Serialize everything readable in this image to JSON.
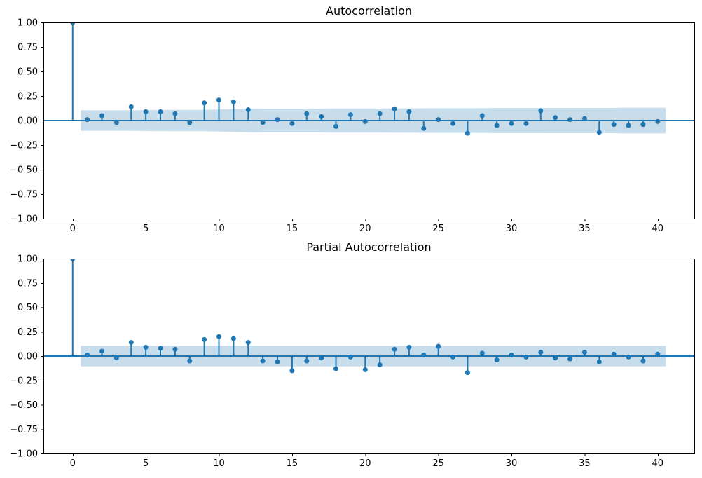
{
  "figure": {
    "background": "#ffffff"
  },
  "style": {
    "accent": "#1f77b4",
    "band_fill": "rgba(31,119,180,0.25)",
    "axis_color": "#000000",
    "text_color": "#000000"
  },
  "chart_data": [
    {
      "type": "stem",
      "title": "Autocorrelation",
      "x": [
        0,
        1,
        2,
        3,
        4,
        5,
        6,
        7,
        8,
        9,
        10,
        11,
        12,
        13,
        14,
        15,
        16,
        17,
        18,
        19,
        20,
        21,
        22,
        23,
        24,
        25,
        26,
        27,
        28,
        29,
        30,
        31,
        32,
        33,
        34,
        35,
        36,
        37,
        38,
        39,
        40
      ],
      "values": [
        1.0,
        0.01,
        0.05,
        -0.02,
        0.14,
        0.09,
        0.09,
        0.07,
        -0.02,
        0.18,
        0.21,
        0.19,
        0.11,
        -0.02,
        0.01,
        -0.03,
        0.07,
        0.04,
        -0.06,
        0.06,
        -0.01,
        0.07,
        0.12,
        0.09,
        -0.08,
        0.01,
        -0.03,
        -0.13,
        0.05,
        -0.05,
        -0.03,
        -0.03,
        0.1,
        0.03,
        0.01,
        0.02,
        -0.12,
        -0.04,
        -0.05,
        -0.04,
        -0.01
      ],
      "xlim": [
        -2,
        42.5
      ],
      "ylim": [
        -1,
        1
      ],
      "xticks": [
        0,
        5,
        10,
        15,
        20,
        25,
        30,
        35,
        40
      ],
      "xtick_labels": [
        "0",
        "5",
        "10",
        "15",
        "20",
        "25",
        "30",
        "35",
        "40"
      ],
      "yticks": [
        1,
        0.75,
        0.5,
        0.25,
        0,
        -0.25,
        -0.5,
        -0.75,
        -1
      ],
      "ytick_labels": [
        "1.00",
        "0.75",
        "0.50",
        "0.25",
        "0.00",
        "−0.25",
        "−0.50",
        "−0.75",
        "−1.00"
      ],
      "conf_band": {
        "method": "bartlett",
        "n_obs": 350,
        "x_start": 0.55,
        "x_end": 40.55
      },
      "grid": false,
      "legend": null
    },
    {
      "type": "stem",
      "title": "Partial Autocorrelation",
      "x": [
        0,
        1,
        2,
        3,
        4,
        5,
        6,
        7,
        8,
        9,
        10,
        11,
        12,
        13,
        14,
        15,
        16,
        17,
        18,
        19,
        20,
        21,
        22,
        23,
        24,
        25,
        26,
        27,
        28,
        29,
        30,
        31,
        32,
        33,
        34,
        35,
        36,
        37,
        38,
        39,
        40
      ],
      "values": [
        1.0,
        0.01,
        0.05,
        -0.02,
        0.14,
        0.09,
        0.08,
        0.07,
        -0.05,
        0.17,
        0.2,
        0.18,
        0.14,
        -0.05,
        -0.06,
        -0.15,
        -0.05,
        -0.02,
        -0.13,
        -0.01,
        -0.14,
        -0.09,
        0.07,
        0.09,
        0.01,
        0.1,
        -0.01,
        -0.17,
        0.03,
        -0.04,
        0.01,
        -0.01,
        0.04,
        -0.02,
        -0.03,
        0.04,
        -0.06,
        0.02,
        -0.01,
        -0.05,
        0.02
      ],
      "xlim": [
        -2,
        42.5
      ],
      "ylim": [
        -1,
        1
      ],
      "xticks": [
        0,
        5,
        10,
        15,
        20,
        25,
        30,
        35,
        40
      ],
      "xtick_labels": [
        "0",
        "5",
        "10",
        "15",
        "20",
        "25",
        "30",
        "35",
        "40"
      ],
      "yticks": [
        1,
        0.75,
        0.5,
        0.25,
        0,
        -0.25,
        -0.5,
        -0.75,
        -1
      ],
      "ytick_labels": [
        "1.00",
        "0.75",
        "0.50",
        "0.25",
        "0.00",
        "−0.25",
        "−0.50",
        "−0.75",
        "−1.00"
      ],
      "conf_band": {
        "method": "constant",
        "halfwidth": 0.105,
        "x_start": 0.55,
        "x_end": 40.55
      },
      "grid": false,
      "legend": null
    }
  ]
}
